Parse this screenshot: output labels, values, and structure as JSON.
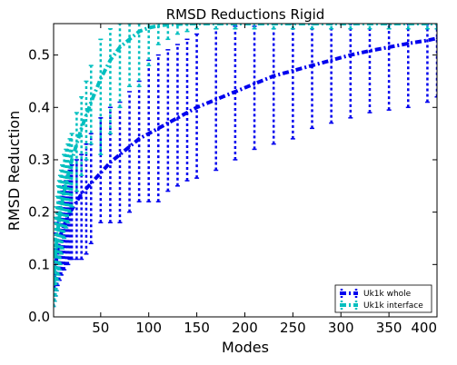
{
  "chart_data": {
    "type": "line",
    "title": "RMSD Reductions Rigid",
    "xlabel": "Modes",
    "ylabel": "RMSD Reduction",
    "xlim": [
      1,
      400
    ],
    "ylim": [
      0.0,
      0.56
    ],
    "xticks": [
      50,
      100,
      150,
      200,
      250,
      300,
      350,
      400
    ],
    "xtick_labels": [
      "50",
      "100",
      "150",
      "200",
      "250",
      "300",
      "350",
      "400"
    ],
    "yticks": [
      0.0,
      0.1,
      0.2,
      0.3,
      0.4,
      0.5
    ],
    "ytick_labels": [
      "0.0",
      "0.1",
      "0.2",
      "0.3",
      "0.4",
      "0.5"
    ],
    "grid": false,
    "legend_position": "lower-right",
    "series": [
      {
        "name": "Uk1k whole",
        "color": "#0000ee",
        "style": "dash-dot with error bars",
        "x": [
          1,
          2,
          3,
          4,
          5,
          6,
          7,
          8,
          9,
          10,
          12,
          14,
          16,
          18,
          20,
          25,
          30,
          35,
          40,
          50,
          60,
          70,
          80,
          90,
          100,
          110,
          120,
          130,
          140,
          150,
          170,
          190,
          210,
          230,
          250,
          270,
          290,
          310,
          330,
          350,
          370,
          390,
          400
        ],
        "y": [
          0.05,
          0.08,
          0.1,
          0.11,
          0.125,
          0.135,
          0.145,
          0.155,
          0.16,
          0.165,
          0.175,
          0.185,
          0.19,
          0.2,
          0.205,
          0.22,
          0.235,
          0.245,
          0.255,
          0.275,
          0.295,
          0.31,
          0.325,
          0.34,
          0.35,
          0.36,
          0.37,
          0.38,
          0.39,
          0.4,
          0.415,
          0.43,
          0.445,
          0.46,
          0.47,
          0.48,
          0.49,
          0.5,
          0.508,
          0.515,
          0.522,
          0.528,
          0.532
        ],
        "err_low": [
          0.02,
          0.03,
          0.04,
          0.05,
          0.06,
          0.07,
          0.07,
          0.08,
          0.08,
          0.09,
          0.09,
          0.1,
          0.1,
          0.11,
          0.11,
          0.11,
          0.11,
          0.12,
          0.14,
          0.18,
          0.18,
          0.18,
          0.2,
          0.22,
          0.22,
          0.22,
          0.24,
          0.25,
          0.26,
          0.265,
          0.28,
          0.3,
          0.32,
          0.33,
          0.34,
          0.36,
          0.37,
          0.38,
          0.39,
          0.395,
          0.4,
          0.41,
          0.42
        ],
        "err_high": [
          0.09,
          0.13,
          0.16,
          0.18,
          0.19,
          0.2,
          0.21,
          0.22,
          0.23,
          0.24,
          0.25,
          0.26,
          0.27,
          0.28,
          0.29,
          0.3,
          0.31,
          0.33,
          0.35,
          0.38,
          0.4,
          0.41,
          0.43,
          0.45,
          0.49,
          0.5,
          0.51,
          0.52,
          0.53,
          0.54,
          0.55,
          0.555,
          0.555,
          0.56,
          0.56,
          0.56,
          0.56,
          0.56,
          0.56,
          0.56,
          0.56,
          0.56,
          0.56
        ]
      },
      {
        "name": "Uk1k interface",
        "color": "#00bfbf",
        "style": "dash-dot with error bars",
        "x": [
          1,
          2,
          3,
          4,
          5,
          6,
          7,
          8,
          9,
          10,
          12,
          14,
          16,
          18,
          20,
          25,
          30,
          35,
          40,
          50,
          60,
          70,
          80,
          90,
          100,
          110,
          120,
          130,
          140,
          150,
          170,
          190,
          210,
          230,
          250,
          270,
          290,
          310,
          330,
          350,
          370,
          390,
          400
        ],
        "y": [
          0.06,
          0.09,
          0.12,
          0.14,
          0.16,
          0.175,
          0.19,
          0.2,
          0.21,
          0.22,
          0.24,
          0.255,
          0.27,
          0.285,
          0.3,
          0.33,
          0.36,
          0.385,
          0.41,
          0.455,
          0.49,
          0.515,
          0.53,
          0.545,
          0.552,
          0.556,
          0.558,
          0.559,
          0.56,
          0.56,
          0.56,
          0.56,
          0.56,
          0.56,
          0.56,
          0.56,
          0.56,
          0.56,
          0.56,
          0.56,
          0.56,
          0.56,
          0.56
        ],
        "err_low": [
          0.02,
          0.03,
          0.04,
          0.05,
          0.07,
          0.08,
          0.09,
          0.1,
          0.12,
          0.13,
          0.15,
          0.17,
          0.18,
          0.2,
          0.21,
          0.24,
          0.27,
          0.3,
          0.33,
          0.31,
          0.35,
          0.4,
          0.44,
          0.44,
          0.48,
          0.52,
          0.53,
          0.54,
          0.545,
          0.55,
          0.55,
          0.55,
          0.55,
          0.55,
          0.55,
          0.55,
          0.55,
          0.55,
          0.55,
          0.55,
          0.55,
          0.55,
          0.55
        ],
        "err_high": [
          0.1,
          0.15,
          0.19,
          0.21,
          0.23,
          0.25,
          0.26,
          0.27,
          0.28,
          0.29,
          0.31,
          0.32,
          0.33,
          0.34,
          0.35,
          0.39,
          0.42,
          0.45,
          0.48,
          0.53,
          0.55,
          0.56,
          0.56,
          0.56,
          0.56,
          0.56,
          0.56,
          0.56,
          0.56,
          0.56,
          0.56,
          0.56,
          0.56,
          0.56,
          0.56,
          0.56,
          0.56,
          0.56,
          0.56,
          0.56,
          0.56,
          0.56,
          0.56
        ]
      }
    ]
  }
}
